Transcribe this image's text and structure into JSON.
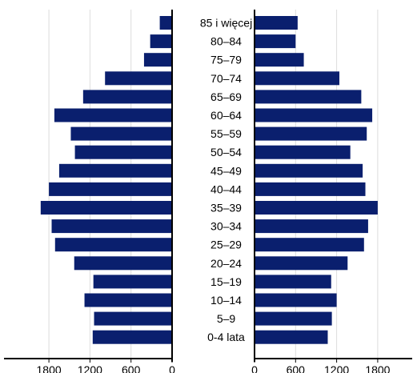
{
  "chart_data": {
    "type": "bar",
    "orientation": "horizontal",
    "layout": "population-pyramid",
    "categories": [
      "85 i więcej",
      "80–84",
      "75–79",
      "70–74",
      "65–69",
      "60–64",
      "55–59",
      "50–54",
      "45–49",
      "40–44",
      "35–39",
      "30–34",
      "25–29",
      "20–24",
      "15–19",
      "10–14",
      "5–9",
      "0-4 lata"
    ],
    "series": [
      {
        "side": "left",
        "values": [
          180,
          320,
          410,
          980,
          1300,
          1720,
          1480,
          1420,
          1650,
          1800,
          1920,
          1760,
          1710,
          1430,
          1150,
          1280,
          1140,
          1160
        ]
      },
      {
        "side": "right",
        "values": [
          630,
          600,
          720,
          1240,
          1560,
          1720,
          1640,
          1400,
          1580,
          1620,
          1800,
          1660,
          1600,
          1360,
          1120,
          1200,
          1130,
          1070
        ]
      }
    ],
    "left_ticks": [
      1800,
      1200,
      600,
      0
    ],
    "right_ticks": [
      0,
      600,
      1200,
      1800
    ],
    "xlim": [
      0,
      2000
    ],
    "grid": true,
    "bar_color": "#0a1f6e",
    "grid_color": "#dcdcdc"
  }
}
